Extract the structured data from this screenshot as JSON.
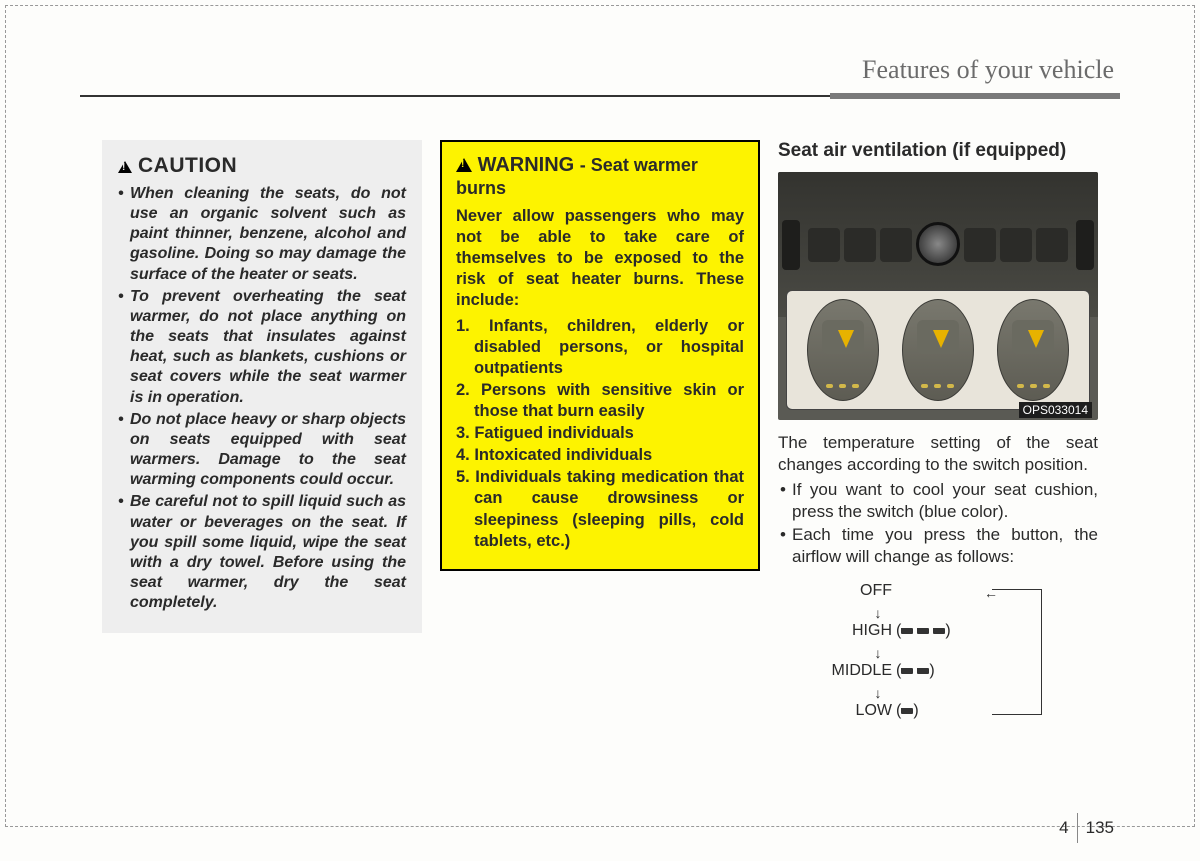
{
  "header": {
    "title": "Features of your vehicle"
  },
  "caution": {
    "title": "CAUTION",
    "items": [
      "When cleaning the seats, do not use an organic solvent such as paint thinner, benzene, alcohol and gasoline. Doing so may damage the surface of the heater or seats.",
      "To prevent overheating the seat warmer, do not place anything on the seats that insulates against heat, such as blankets, cushions or seat covers while the seat warmer is in operation.",
      "Do not place heavy or sharp objects on seats equipped with seat warmers. Damage to the seat warming components could occur.",
      "Be careful not to spill liquid such as water or beverages on the seat. If you spill some liquid, wipe the seat with a dry towel. Before using the seat warmer, dry the seat completely."
    ]
  },
  "warning": {
    "title_main": "WARNING",
    "title_sub": "- Seat warmer burns",
    "intro": "Never allow passengers who may not be able to take care of themselves to be exposed to the risk of seat heater burns. These include:",
    "items": [
      "1. Infants, children, elderly or disabled persons, or hospital outpatients",
      "2. Persons with sensitive skin or those that burn easily",
      "3. Fatigued individuals",
      "4. Intoxicated individuals",
      "5. Individuals taking medication that can cause drowsiness or sleepiness (sleeping pills, cold tablets, etc.)"
    ]
  },
  "ventilation": {
    "title": "Seat air ventilation (if equipped)",
    "photo_code": "OPS033014",
    "body": "The temperature setting of the seat changes according to the switch position.",
    "bullets": [
      "If you want to cool your seat cushion, press the switch (blue color).",
      "Each time you press the button, the airflow will change as follows:"
    ],
    "flow": {
      "off": "OFF",
      "high": "HIGH",
      "middle": "MIDDLE",
      "low": "LOW"
    }
  },
  "footer": {
    "chapter": "4",
    "page": "135"
  },
  "colors": {
    "caution_bg": "#eeeeee",
    "warning_bg": "#fdf300",
    "page_bg": "#fdfdfb",
    "text": "#2a2a2a"
  }
}
